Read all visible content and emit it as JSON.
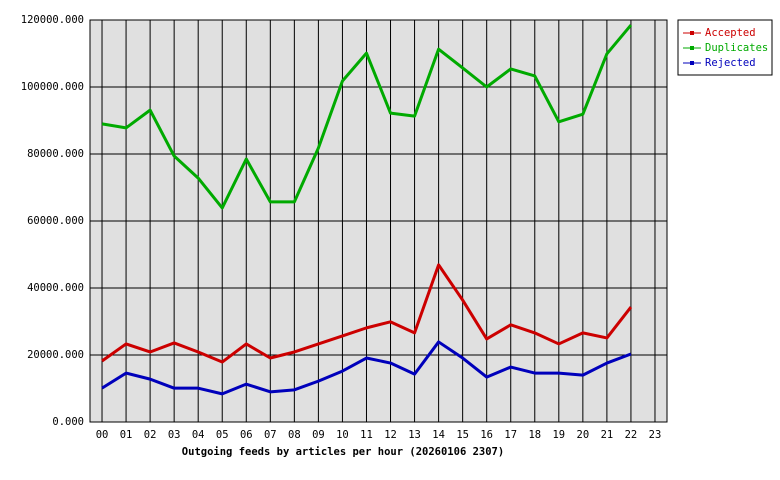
{
  "chart_data": {
    "type": "line",
    "title": "Outgoing feeds by articles per hour (20260106 2307)",
    "categories": [
      "00",
      "01",
      "02",
      "03",
      "04",
      "05",
      "06",
      "07",
      "08",
      "09",
      "10",
      "11",
      "12",
      "13",
      "14",
      "15",
      "16",
      "17",
      "18",
      "19",
      "20",
      "21",
      "22",
      "23"
    ],
    "series": [
      {
        "name": "Accepted",
        "color": "#cc0000",
        "values": [
          18200,
          23300,
          20900,
          23600,
          20900,
          17900,
          23300,
          19100,
          20900,
          23300,
          25700,
          28100,
          29900,
          26600,
          46900,
          36400,
          24800,
          29000,
          26600,
          23300,
          26600,
          25100,
          34300,
          null
        ]
      },
      {
        "name": "Duplicates",
        "color": "#00aa00",
        "values": [
          89000,
          87800,
          93100,
          79400,
          72800,
          63900,
          78500,
          65700,
          65700,
          81800,
          101800,
          110100,
          92200,
          91300,
          111300,
          105700,
          100000,
          105400,
          103300,
          89600,
          91900,
          109900,
          118500,
          null
        ]
      },
      {
        "name": "Rejected",
        "color": "#0000bb",
        "values": [
          10100,
          14600,
          12800,
          10100,
          10100,
          8400,
          11300,
          9000,
          9600,
          12200,
          15200,
          19100,
          17600,
          14300,
          23900,
          19100,
          13400,
          16400,
          14600,
          14600,
          14000,
          17600,
          20300,
          null
        ]
      }
    ],
    "ylim": [
      0,
      120000
    ],
    "yticks": [
      {
        "value": 0,
        "label": "0.000"
      },
      {
        "value": 20000,
        "label": "20000.000"
      },
      {
        "value": 40000,
        "label": "40000.000"
      },
      {
        "value": 60000,
        "label": "60000.000"
      },
      {
        "value": 80000,
        "label": "80000.000"
      },
      {
        "value": 100000,
        "label": "100000.000"
      },
      {
        "value": 120000,
        "label": "120000.000"
      }
    ],
    "grid": true,
    "legend": "top-right"
  }
}
